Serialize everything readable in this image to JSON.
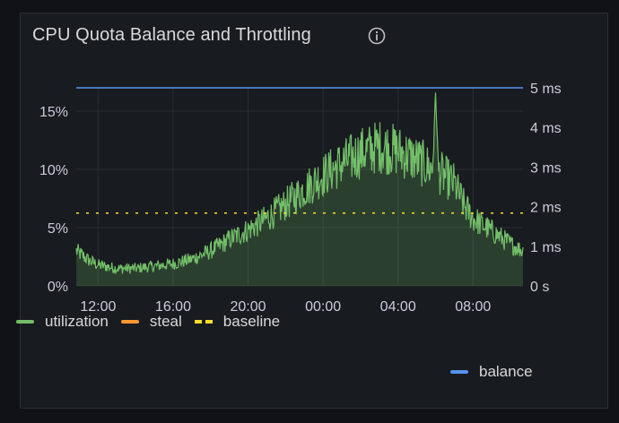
{
  "panel": {
    "title": "CPU Quota Balance and Throttling",
    "info_icon": "info-icon"
  },
  "legend": {
    "items": [
      {
        "label": "utilization",
        "color": "#73bf69",
        "style": "solid"
      },
      {
        "label": "steal",
        "color": "#ff9830",
        "style": "solid"
      },
      {
        "label": "baseline",
        "color": "#fade2a",
        "style": "dashed"
      }
    ],
    "right_axis_items": [
      {
        "label": "balance",
        "color": "#5794f2",
        "style": "solid"
      }
    ]
  },
  "chart_data": {
    "type": "line",
    "x_ticks": [
      "12:00",
      "16:00",
      "20:00",
      "00:00",
      "04:00",
      "08:00"
    ],
    "x_range": [
      "10:50",
      "10:40 (+1 day)"
    ],
    "left_axis": {
      "ticks": [
        "0%",
        "5%",
        "10%",
        "15%"
      ],
      "ylim": [
        0,
        17
      ]
    },
    "right_axis": {
      "ticks": [
        "0 s",
        "1 ms",
        "2 ms",
        "3 ms",
        "4 ms",
        "5 ms"
      ],
      "ylim": [
        0,
        5
      ]
    },
    "grid": true,
    "series": [
      {
        "name": "utilization",
        "axis": "left",
        "unit": "%",
        "fill": true,
        "color": "#73bf69",
        "x_hours_label": [
          "10:50",
          "11:30",
          "12:00",
          "13:00",
          "14:00",
          "15:00",
          "16:00",
          "17:00",
          "18:00",
          "19:00",
          "20:00",
          "21:00",
          "22:00",
          "23:00",
          "00:00",
          "01:00",
          "02:00",
          "03:00",
          "04:00",
          "05:00",
          "05:50",
          "06:00",
          "06:10",
          "07:00",
          "07:30",
          "08:00",
          "09:00",
          "10:00",
          "10:40"
        ],
        "values": [
          3.0,
          2.2,
          1.8,
          1.5,
          1.5,
          1.7,
          1.9,
          2.3,
          3.0,
          4.0,
          4.8,
          5.8,
          7.0,
          8.3,
          9.5,
          10.5,
          11.4,
          12.0,
          11.6,
          10.8,
          10.0,
          16.5,
          9.8,
          8.8,
          7.0,
          5.8,
          4.7,
          3.6,
          3.0
        ]
      },
      {
        "name": "steal",
        "axis": "left",
        "unit": "%",
        "color": "#ff9830",
        "values": [
          0,
          0
        ]
      },
      {
        "name": "baseline",
        "axis": "left",
        "unit": "%",
        "color": "#fade2a",
        "values": [
          6.25,
          6.25
        ]
      },
      {
        "name": "balance",
        "axis": "right",
        "unit": "ms",
        "color": "#5794f2",
        "values": [
          5,
          5
        ]
      }
    ]
  }
}
